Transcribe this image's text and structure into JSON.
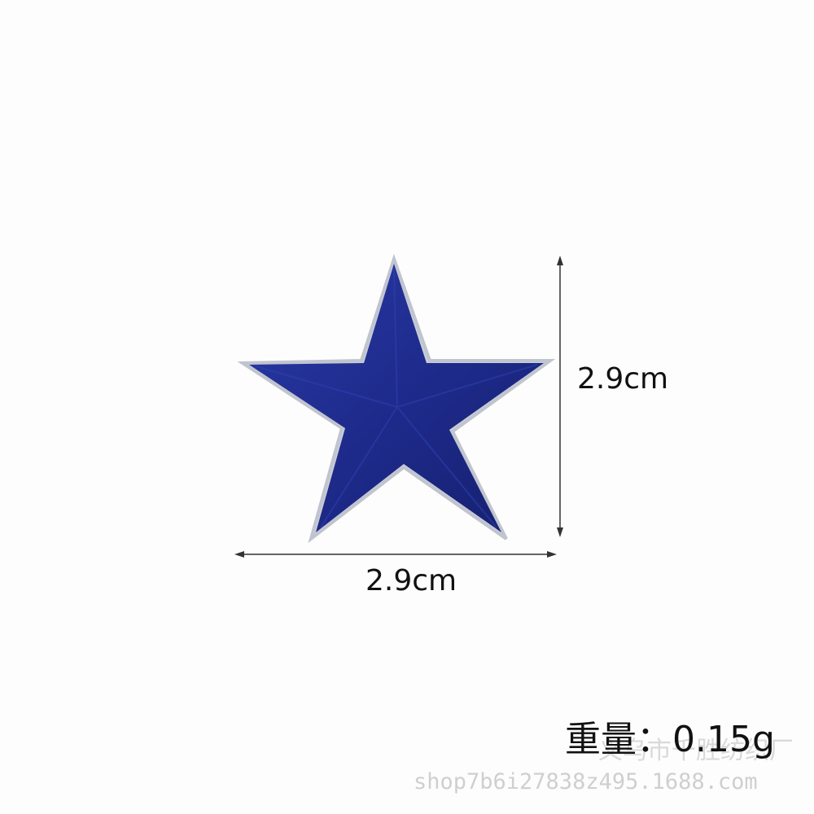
{
  "product": {
    "name": "blue-star-embroidered-patch",
    "color": "#1e2b8c",
    "thread_highlight": "#2f40b0",
    "backing_color": "#c9cdd6"
  },
  "dimensions": {
    "height_label": "2.9cm",
    "width_label": "2.9cm"
  },
  "weight_label": "重量：0.15g",
  "watermark": {
    "shop_name": "义乌市千胜纺织厂",
    "shop_url": "shop7b6i27838z495.1688.com"
  }
}
